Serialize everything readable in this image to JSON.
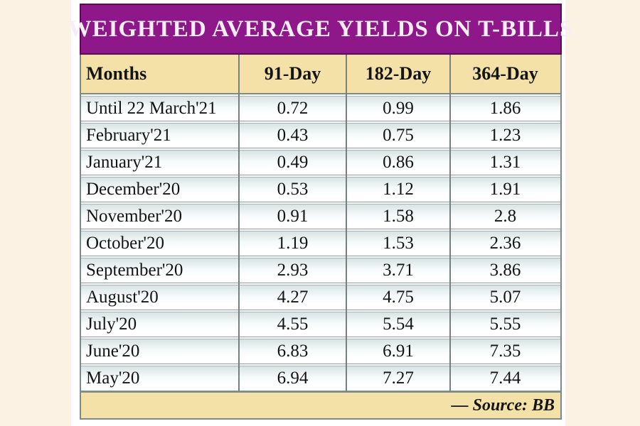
{
  "title": "WEIGHTED AVERAGE YIELDS ON T-BILLS",
  "table": {
    "columns": [
      "Months",
      "91-Day",
      "182-Day",
      "364-Day"
    ],
    "rows": [
      [
        "Until 22 March'21",
        "0.72",
        "0.99",
        "1.86"
      ],
      [
        "February'21",
        "0.43",
        "0.75",
        "1.23"
      ],
      [
        "January'21",
        "0.49",
        "0.86",
        "1.31"
      ],
      [
        "December'20",
        "0.53",
        "1.12",
        "1.91"
      ],
      [
        "November'20",
        "0.91",
        "1.58",
        "2.8"
      ],
      [
        "October'20",
        "1.19",
        "1.53",
        "2.36"
      ],
      [
        "September'20",
        "2.93",
        "3.71",
        "3.86"
      ],
      [
        "August'20",
        "4.27",
        "4.75",
        "5.07"
      ],
      [
        "July'20",
        "4.55",
        "5.54",
        "5.55"
      ],
      [
        "June'20",
        "6.83",
        "6.91",
        "7.35"
      ],
      [
        "May'20",
        "6.94",
        "7.27",
        "7.44"
      ]
    ]
  },
  "footer": {
    "source_label": "— Source: BB"
  },
  "colors": {
    "banner": "#8e188a",
    "banner_border": "#5c0a58",
    "banner_text": "#f8edf5",
    "tan": "#f3e1a7",
    "page_band": "#fcf2e4",
    "row_top": "#d8e3e3",
    "row_line": "#8e9b9b",
    "row_line_light": "#a8b4b4",
    "grid_line": "#75807f",
    "outer_line": "#7e8a8a",
    "text": "#141414"
  },
  "chart_data": {
    "type": "table",
    "title": "WEIGHTED AVERAGE YIELDS ON T-BILLS",
    "categories": [
      "Until 22 March'21",
      "February'21",
      "January'21",
      "December'20",
      "November'20",
      "October'20",
      "September'20",
      "August'20",
      "July'20",
      "June'20",
      "May'20"
    ],
    "series": [
      {
        "name": "91-Day",
        "values": [
          0.72,
          0.43,
          0.49,
          0.53,
          0.91,
          1.19,
          2.93,
          4.27,
          4.55,
          6.83,
          6.94
        ]
      },
      {
        "name": "182-Day",
        "values": [
          0.99,
          0.75,
          0.86,
          1.12,
          1.58,
          1.53,
          3.71,
          4.75,
          5.54,
          6.91,
          7.27
        ]
      },
      {
        "name": "364-Day",
        "values": [
          1.86,
          1.23,
          1.31,
          1.91,
          2.8,
          2.36,
          3.86,
          5.07,
          5.55,
          7.35,
          7.44
        ]
      }
    ],
    "source": "BB"
  }
}
